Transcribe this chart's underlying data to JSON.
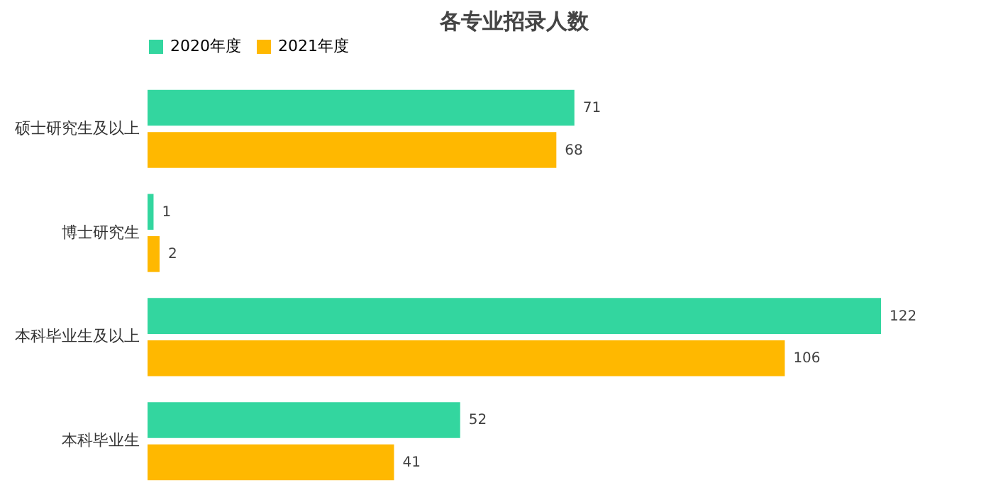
{
  "chart_data": {
    "type": "bar",
    "title": "各专业招录人数",
    "orientation": "horizontal",
    "tick_labels": "y",
    "data_labels": true,
    "legend": "top",
    "categories": [
      "硕士研究生及以上",
      "博士研究生",
      "本科毕业生及以上",
      "本科毕业生"
    ],
    "series": [
      {
        "name": "2020年度",
        "color": "#33d69f",
        "values": [
          71,
          1,
          122,
          52
        ]
      },
      {
        "name": "2021年度",
        "color": "#ffb800",
        "values": [
          68,
          2,
          106,
          41
        ]
      }
    ]
  }
}
